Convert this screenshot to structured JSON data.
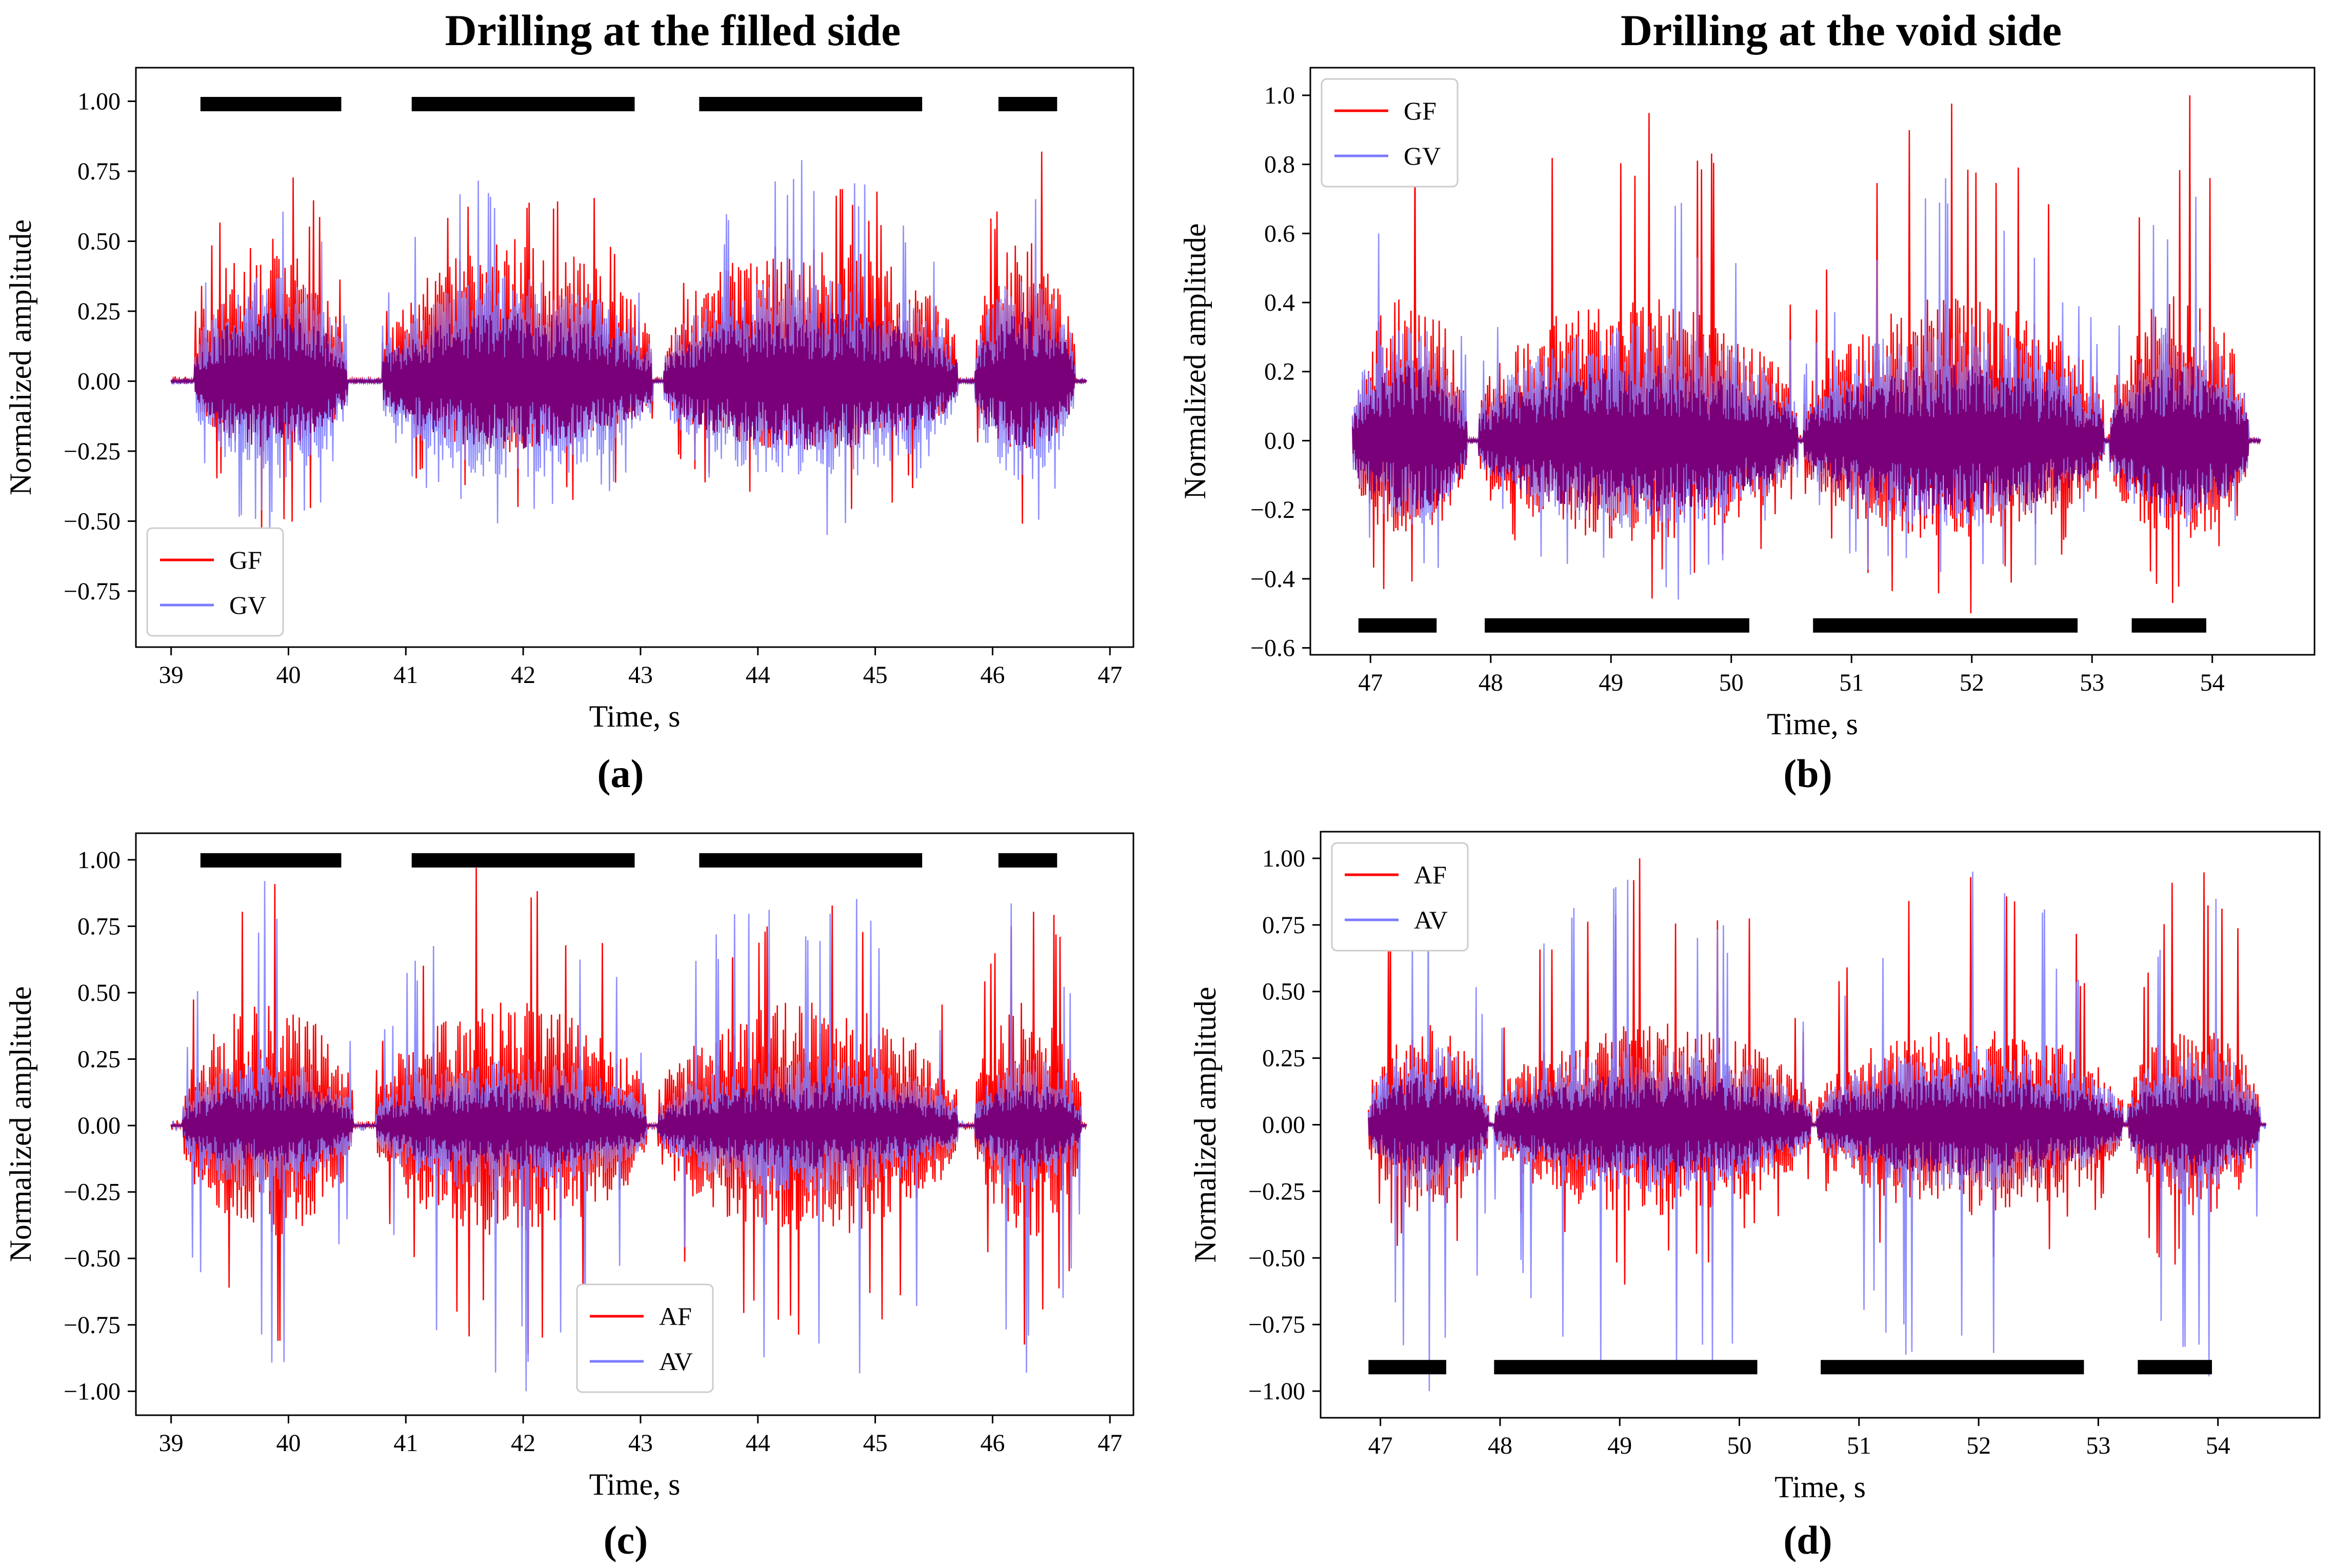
{
  "figure": {
    "left_title": "Drilling at the filled side",
    "right_title": "Drilling at the void side"
  },
  "colors": {
    "red": "#ff0000",
    "blue": "#7b7bff",
    "overlap": "#7a007a"
  },
  "chart_data": [
    {
      "id": "a",
      "type": "line",
      "label": "(a)",
      "xlabel": "Time, s",
      "ylabel": "Normalized amplitude",
      "xlim": [
        38.7,
        47.2
      ],
      "ylim": [
        -0.95,
        1.12
      ],
      "xticks": [
        39,
        40,
        41,
        42,
        43,
        44,
        45,
        46,
        47
      ],
      "yticks": [
        -0.75,
        -0.5,
        -0.25,
        0.0,
        0.25,
        0.5,
        0.75,
        1.0
      ],
      "ytick_labels": [
        "−0.75",
        "−0.50",
        "−0.25",
        "0.00",
        "0.25",
        "0.50",
        "0.75",
        "1.00"
      ],
      "legend": {
        "position": "lower-left",
        "entries": [
          "GF",
          "GV"
        ]
      },
      "bars": {
        "y": 0.99,
        "spans": [
          [
            39.25,
            40.45
          ],
          [
            41.05,
            42.95
          ],
          [
            43.5,
            45.4
          ],
          [
            46.05,
            46.55
          ]
        ]
      },
      "signal": {
        "t0": 39.0,
        "t1": 46.8,
        "segments": [
          [
            39.2,
            40.5
          ],
          [
            40.8,
            43.1
          ],
          [
            43.2,
            45.7
          ],
          [
            45.85,
            46.7
          ]
        ]
      },
      "series": [
        {
          "name": "GF",
          "color": "#ff0000",
          "pos": 0.82,
          "neg": 0.54,
          "pmin": 0.6,
          "nmin": 0.3,
          "seed": 3
        },
        {
          "name": "GV",
          "color": "#7b7bff",
          "pos": 0.79,
          "neg": 0.58,
          "pmin": 0.45,
          "nmin": 0.42,
          "seed": 17
        }
      ]
    },
    {
      "id": "b",
      "type": "line",
      "label": "(b)",
      "xlabel": "Time, s",
      "ylabel": "Normalized amplitude",
      "xlim": [
        46.5,
        54.85
      ],
      "ylim": [
        -0.62,
        1.08
      ],
      "xticks": [
        47,
        48,
        49,
        50,
        51,
        52,
        53,
        54
      ],
      "yticks": [
        -0.6,
        -0.4,
        -0.2,
        0.0,
        0.2,
        0.4,
        0.6,
        0.8,
        1.0
      ],
      "ytick_labels": [
        "−0.6",
        "−0.4",
        "−0.2",
        "0.0",
        "0.2",
        "0.4",
        "0.6",
        "0.8",
        "1.0"
      ],
      "legend": {
        "position": "upper-left",
        "entries": [
          "GF",
          "GV"
        ]
      },
      "bars": {
        "y": -0.535,
        "spans": [
          [
            46.9,
            47.55
          ],
          [
            47.95,
            50.15
          ],
          [
            50.68,
            52.88
          ],
          [
            53.33,
            53.95
          ]
        ]
      },
      "signal": {
        "t0": 46.85,
        "t1": 54.4,
        "segments": [
          [
            46.85,
            47.8
          ],
          [
            47.9,
            50.55
          ],
          [
            50.6,
            53.1
          ],
          [
            53.15,
            54.3
          ]
        ]
      },
      "series": [
        {
          "name": "GF",
          "color": "#ff0000",
          "pos": 1.0,
          "neg": 0.5,
          "pmin": 0.5,
          "nmin": 0.35,
          "seed": 29
        },
        {
          "name": "GV",
          "color": "#7b7bff",
          "pos": 0.76,
          "neg": 0.46,
          "pmin": 0.4,
          "nmin": 0.3,
          "seed": 41
        }
      ]
    },
    {
      "id": "c",
      "type": "line",
      "label": "(c)",
      "xlabel": "Time, s",
      "ylabel": "Normalized amplitude",
      "xlim": [
        38.7,
        47.2
      ],
      "ylim": [
        -1.09,
        1.1
      ],
      "xticks": [
        39,
        40,
        41,
        42,
        43,
        44,
        45,
        46,
        47
      ],
      "yticks": [
        -1.0,
        -0.75,
        -0.5,
        -0.25,
        0.0,
        0.25,
        0.5,
        0.75,
        1.0
      ],
      "ytick_labels": [
        "−1.00",
        "−0.75",
        "−0.50",
        "−0.25",
        "0.00",
        "0.25",
        "0.50",
        "0.75",
        "1.00"
      ],
      "legend": {
        "position": "lower-center",
        "entries": [
          "AF",
          "AV"
        ]
      },
      "bars": {
        "y": 0.998,
        "spans": [
          [
            39.25,
            40.45
          ],
          [
            41.05,
            42.95
          ],
          [
            43.5,
            45.4
          ],
          [
            46.05,
            46.55
          ]
        ]
      },
      "signal": {
        "t0": 39.0,
        "t1": 46.8,
        "segments": [
          [
            39.1,
            40.55
          ],
          [
            40.75,
            43.05
          ],
          [
            43.15,
            45.7
          ],
          [
            45.85,
            46.75
          ]
        ]
      },
      "series": [
        {
          "name": "AF",
          "color": "#ff0000",
          "pos": 0.97,
          "neg": 0.86,
          "pmin": 0.55,
          "nmin": 0.5,
          "seed": 53
        },
        {
          "name": "AV",
          "color": "#7b7bff",
          "pos": 0.92,
          "neg": 1.0,
          "pmin": 0.3,
          "nmin": 0.3,
          "seed": 67
        }
      ]
    },
    {
      "id": "d",
      "type": "line",
      "label": "(d)",
      "xlabel": "Time, s",
      "ylabel": "Normalized amplitude",
      "xlim": [
        46.5,
        54.85
      ],
      "ylim": [
        -1.1,
        1.1
      ],
      "xticks": [
        47,
        48,
        49,
        50,
        51,
        52,
        53,
        54
      ],
      "yticks": [
        -1.0,
        -0.75,
        -0.5,
        -0.25,
        0.0,
        0.25,
        0.5,
        0.75,
        1.0
      ],
      "ytick_labels": [
        "−1.00",
        "−0.75",
        "−0.50",
        "−0.25",
        "0.00",
        "0.25",
        "0.50",
        "0.75",
        "1.00"
      ],
      "legend": {
        "position": "upper-left",
        "entries": [
          "AF",
          "AV"
        ]
      },
      "bars": {
        "y": -0.91,
        "spans": [
          [
            46.9,
            47.55
          ],
          [
            47.95,
            50.15
          ],
          [
            50.68,
            52.88
          ],
          [
            53.33,
            53.95
          ]
        ]
      },
      "signal": {
        "t0": 46.9,
        "t1": 54.4,
        "segments": [
          [
            46.9,
            47.9
          ],
          [
            47.95,
            50.6
          ],
          [
            50.65,
            53.2
          ],
          [
            53.25,
            54.35
          ]
        ]
      },
      "series": [
        {
          "name": "AF",
          "color": "#ff0000",
          "pos": 1.0,
          "neg": 0.6,
          "pmin": 0.45,
          "nmin": 0.4,
          "seed": 79
        },
        {
          "name": "AV",
          "color": "#7b7bff",
          "pos": 0.95,
          "neg": 1.0,
          "pmin": 0.35,
          "nmin": 0.3,
          "seed": 97
        }
      ]
    }
  ]
}
